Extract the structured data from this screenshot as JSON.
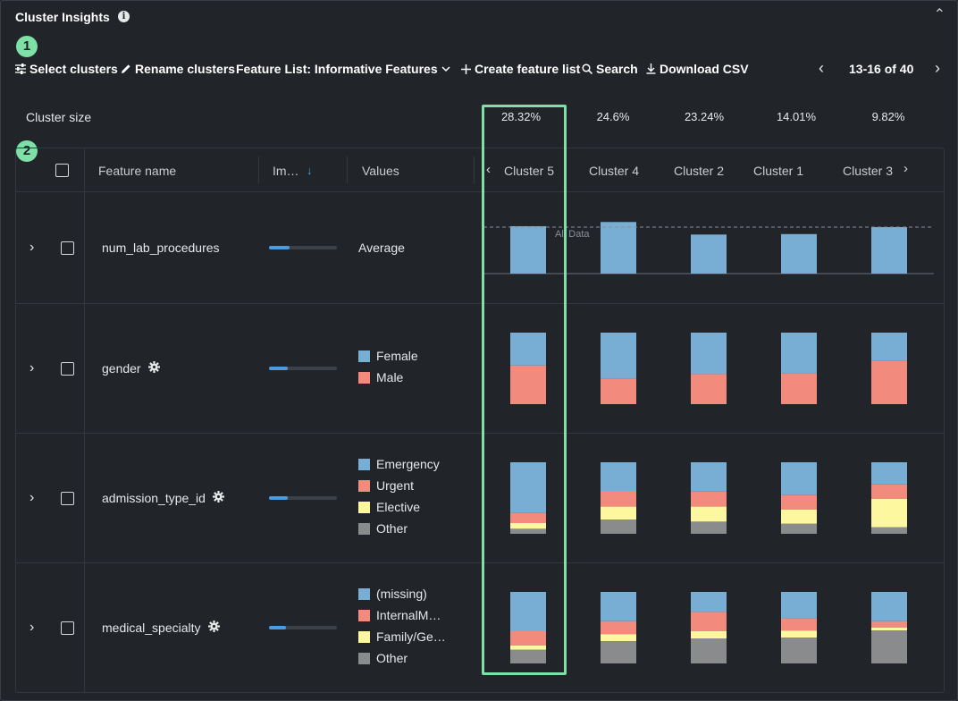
{
  "panel": {
    "title": "Cluster Insights",
    "info_icon": "info-icon",
    "collapse_icon": "chevron-up-icon"
  },
  "badges": [
    "1",
    "2"
  ],
  "toolbar": {
    "select_clusters": "Select clusters",
    "rename_clusters": "Rename clusters",
    "feature_list": "Feature List: Informative Features",
    "create_feature_list": "Create feature list",
    "search": "Search",
    "download_csv": "Download CSV"
  },
  "pager": {
    "text": "13-16 of 40"
  },
  "cluster_size": {
    "label": "Cluster size",
    "values": [
      "28.32%",
      "24.6%",
      "23.24%",
      "14.01%",
      "9.82%"
    ]
  },
  "table": {
    "headers": {
      "feature_name": "Feature name",
      "importance": "Im…",
      "values": "Values"
    },
    "clusters": [
      "Cluster 5",
      "Cluster 4",
      "Cluster 2",
      "Cluster 1",
      "Cluster 3"
    ],
    "all_data_label": "All Data",
    "rows": [
      {
        "name": "num_lab_procedures",
        "has_gear": false,
        "importance": 0.3,
        "value_label": "Average",
        "legend": []
      },
      {
        "name": "gender",
        "has_gear": true,
        "importance": 0.27,
        "value_label": "",
        "legend": [
          {
            "label": "Female",
            "color": "#79aed4"
          },
          {
            "label": "Male",
            "color": "#f28b7e"
          }
        ]
      },
      {
        "name": "admission_type_id",
        "has_gear": true,
        "importance": 0.27,
        "value_label": "",
        "legend": [
          {
            "label": "Emergency",
            "color": "#79aed4"
          },
          {
            "label": "Urgent",
            "color": "#f28b7e"
          },
          {
            "label": "Elective",
            "color": "#fdf7a0"
          },
          {
            "label": "Other",
            "color": "#8a8b8d"
          }
        ]
      },
      {
        "name": "medical_specialty",
        "has_gear": true,
        "importance": 0.25,
        "value_label": "",
        "legend": [
          {
            "label": "(missing)",
            "color": "#79aed4"
          },
          {
            "label": "InternalM…",
            "color": "#f28b7e"
          },
          {
            "label": "Family/Ge…",
            "color": "#fdf7a0"
          },
          {
            "label": "Other",
            "color": "#8a8b8d"
          }
        ]
      }
    ]
  },
  "chart_data": {
    "type": "bar",
    "categories": [
      "Cluster 5",
      "Cluster 4",
      "Cluster 2",
      "Cluster 1",
      "Cluster 3"
    ],
    "num_lab_procedures": {
      "values": [
        1.02,
        1.11,
        0.84,
        0.85,
        1.0
      ],
      "reference_line": 1.0,
      "reference_label": "All Data"
    },
    "gender": {
      "series": [
        {
          "name": "Female",
          "values": [
            0.46,
            0.64,
            0.58,
            0.57,
            0.39
          ]
        },
        {
          "name": "Male",
          "values": [
            0.54,
            0.36,
            0.42,
            0.43,
            0.61
          ]
        }
      ]
    },
    "admission_type_id": {
      "series": [
        {
          "name": "Emergency",
          "values": [
            0.71,
            0.4,
            0.41,
            0.46,
            0.31
          ]
        },
        {
          "name": "Urgent",
          "values": [
            0.14,
            0.22,
            0.21,
            0.2,
            0.2
          ]
        },
        {
          "name": "Elective",
          "values": [
            0.08,
            0.18,
            0.21,
            0.2,
            0.4
          ]
        },
        {
          "name": "Other",
          "values": [
            0.07,
            0.2,
            0.17,
            0.14,
            0.09
          ]
        }
      ]
    },
    "medical_specialty": {
      "series": [
        {
          "name": "(missing)",
          "values": [
            0.55,
            0.41,
            0.28,
            0.37,
            0.41
          ]
        },
        {
          "name": "InternalM…",
          "values": [
            0.2,
            0.18,
            0.27,
            0.17,
            0.09
          ]
        },
        {
          "name": "Family/Ge…",
          "values": [
            0.06,
            0.1,
            0.1,
            0.1,
            0.04
          ]
        },
        {
          "name": "Other",
          "values": [
            0.19,
            0.31,
            0.35,
            0.36,
            0.46
          ]
        }
      ]
    },
    "colors": {
      "primary": "#79aed4",
      "secondary": "#f28b7e",
      "tertiary": "#fdf7a0",
      "other": "#8a8b8d",
      "highlight": "#7ee0a6"
    }
  }
}
